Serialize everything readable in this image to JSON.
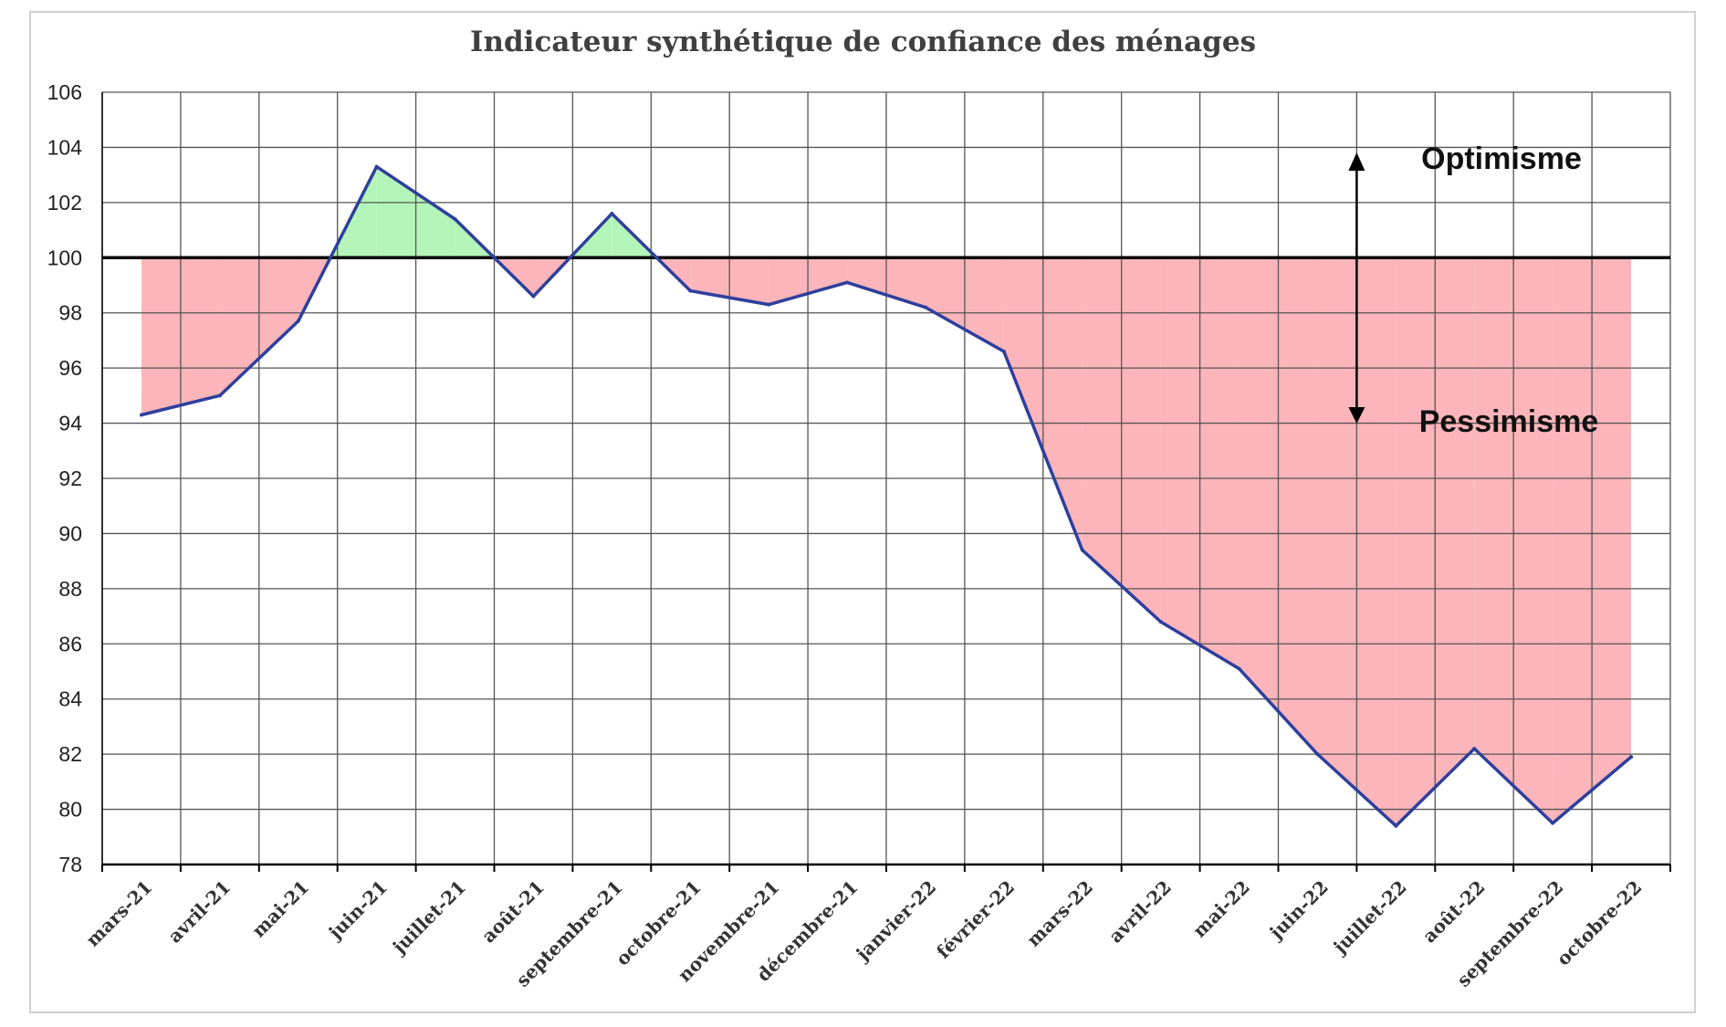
{
  "chart_data": {
    "type": "area",
    "title": "Indicateur synthétique de confiance des ménages",
    "xlabel": "",
    "ylabel": "",
    "categories": [
      "mars-21",
      "avril-21",
      "mai-21",
      "juin-21",
      "juillet-21",
      "août-21",
      "septembre-21",
      "octobre-21",
      "novembre-21",
      "décembre-21",
      "janvier-22",
      "février-22",
      "mars-22",
      "avril-22",
      "mai-22",
      "juin-22",
      "juillet-22",
      "août-22",
      "septembre-22",
      "octobre-22"
    ],
    "series": [
      {
        "values": [
          94.3,
          95.0,
          97.7,
          103.3,
          101.4,
          98.6,
          101.6,
          98.8,
          98.3,
          99.1,
          98.2,
          96.6,
          89.4,
          86.8,
          85.1,
          82.0,
          79.4,
          82.2,
          79.5,
          81.9
        ]
      }
    ],
    "baseline": 100,
    "ylim": [
      78,
      106
    ],
    "yticks": [
      78,
      80,
      82,
      84,
      86,
      88,
      90,
      92,
      94,
      96,
      98,
      100,
      102,
      104,
      106
    ],
    "grid": true,
    "annotations": {
      "above": "Optimisme",
      "below": "Pessimisme"
    },
    "colors": {
      "line": "#2e3f9c",
      "fill_above": "#b3f5b8",
      "fill_below": "#fcb5ba",
      "grid": "#555555",
      "baseline": "#000000"
    }
  }
}
